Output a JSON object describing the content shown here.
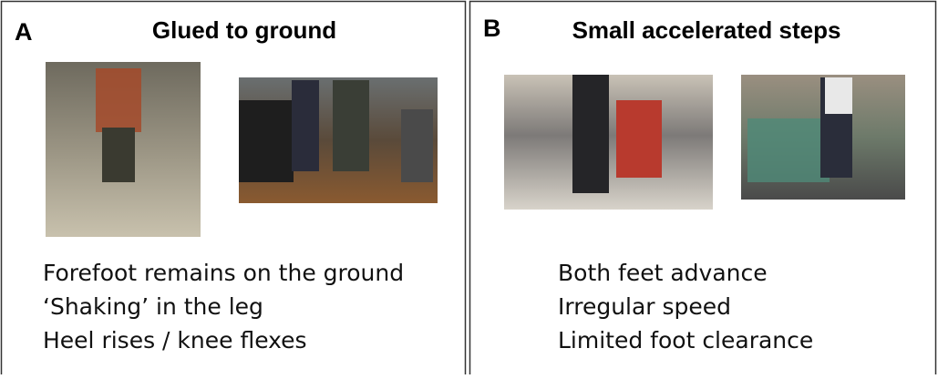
{
  "panels": [
    {
      "label": "A",
      "title": "Glued to ground",
      "lines": [
        "Forefoot remains on the ground",
        "‘Shaking’ in the leg",
        "Heel rises / knee flexes"
      ]
    },
    {
      "label": "B",
      "title": "Small accelerated steps",
      "lines": [
        "Both feet advance",
        "Irregular speed",
        "Limited foot clearance"
      ]
    }
  ]
}
